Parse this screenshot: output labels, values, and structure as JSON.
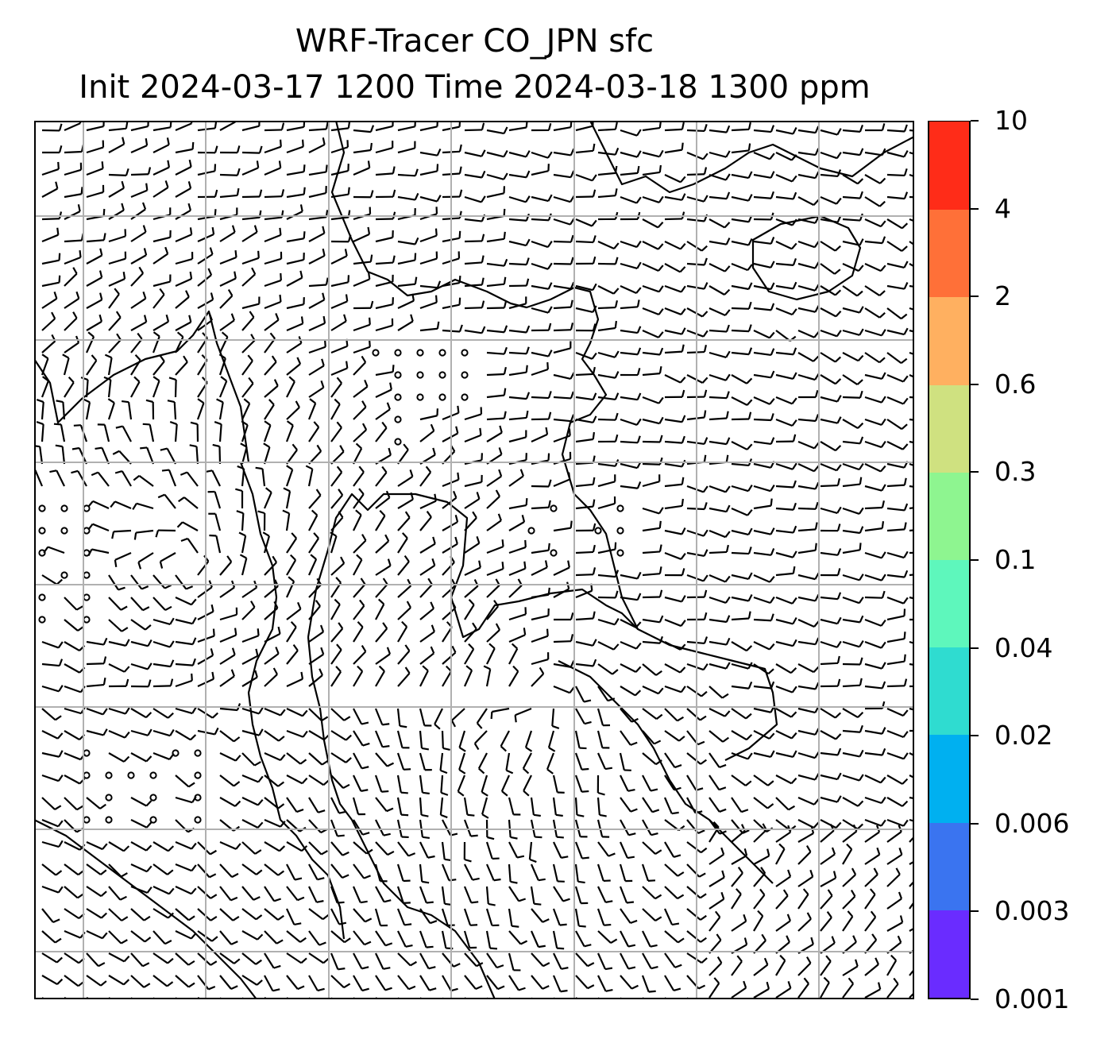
{
  "title": {
    "line1": "WRF-Tracer CO_JPN sfc",
    "line2": "Init 2024-03-17 1200 Time 2024-03-18 1300 ppm"
  },
  "map": {
    "projection_grid": "lat-lon gridlines, 7 columns x 8 rows",
    "layers": [
      "coastlines",
      "wind-barbs",
      "calm-wind-circles",
      "gridlines"
    ],
    "tracer_fill": "none visible (values below 0.001 ppm)",
    "colors": {
      "barb": "#000000",
      "coastline": "#000000",
      "grid": "#b0b0b0",
      "background": "#ffffff"
    }
  },
  "colorbar": {
    "labels": [
      "10",
      "4",
      "2",
      "0.6",
      "0.3",
      "0.1",
      "0.04",
      "0.02",
      "0.006",
      "0.003",
      "0.001"
    ],
    "colors": [
      "#6a2cff",
      "#3a74f0",
      "#00b0f0",
      "#2fdcd0",
      "#5ef7bc",
      "#8ef590",
      "#cfe180",
      "#ffb060",
      "#ff7038",
      "#ff2c18"
    ]
  }
}
